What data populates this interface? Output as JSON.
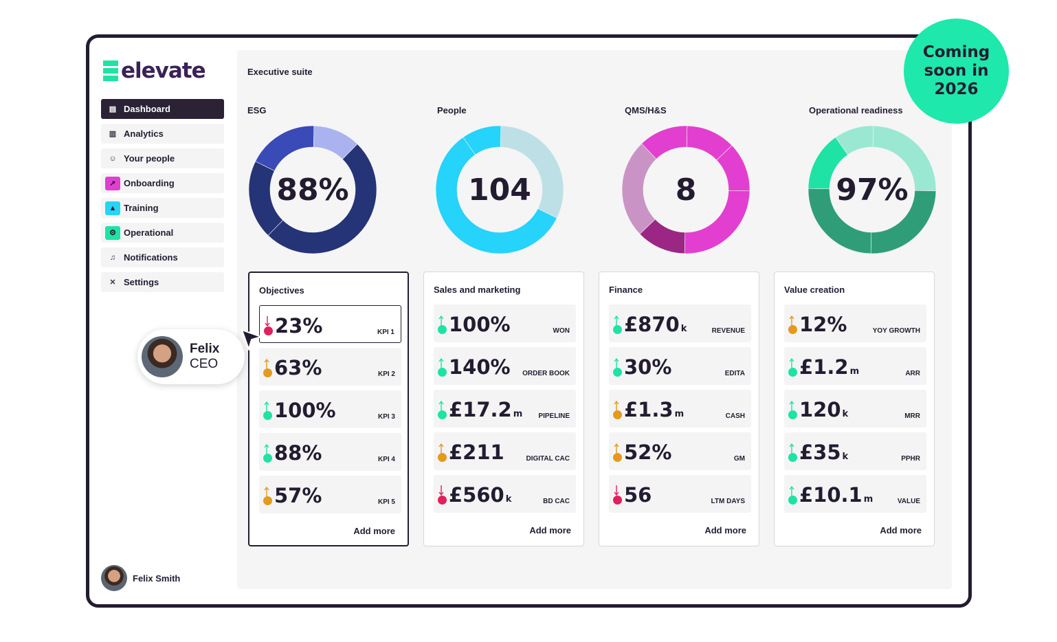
{
  "brand": {
    "name": "elevate"
  },
  "badge": {
    "lines": [
      "Coming",
      "soon in",
      "2026"
    ]
  },
  "sidebar": {
    "items": [
      {
        "label": "Dashboard",
        "icon": "dashboard-icon",
        "color": "#2b2236"
      },
      {
        "label": "Analytics",
        "icon": "chart-icon",
        "color": "#f4f4f4"
      },
      {
        "label": "Your people",
        "icon": "people-icon",
        "color": "#f4f4f4"
      },
      {
        "label": "Onboarding",
        "icon": "rocket-icon",
        "color": "#e23fd0"
      },
      {
        "label": "Training",
        "icon": "graduation-cap-icon",
        "color": "#26d5f5"
      },
      {
        "label": "Operational",
        "icon": "gears-icon",
        "color": "#1ee3a4"
      },
      {
        "label": "Notifications",
        "icon": "bell-icon",
        "color": "#f4f4f4"
      },
      {
        "label": "Settings",
        "icon": "tools-icon",
        "color": "#f4f4f4"
      }
    ],
    "user": "Felix Smith"
  },
  "main": {
    "title": "Executive suite"
  },
  "donuts": [
    {
      "title": "ESG",
      "value": "88%",
      "segments": [
        {
          "fraction": 0.12,
          "color": "#aab3f0"
        },
        {
          "fraction": 0.5,
          "color": "#253377"
        },
        {
          "fraction": 0.2,
          "color": "#253377"
        },
        {
          "fraction": 0.18,
          "color": "#3a4ab6"
        }
      ]
    },
    {
      "title": "People",
      "value": "104",
      "segments": [
        {
          "fraction": 0.32,
          "color": "#bde0e6"
        },
        {
          "fraction": 0.58,
          "color": "#25d3fb"
        },
        {
          "fraction": 0.1,
          "color": "#25d3fb"
        }
      ]
    },
    {
      "title": "QMS/H&S",
      "value": "8",
      "segments": [
        {
          "fraction": 0.125,
          "color": "#e23fd0"
        },
        {
          "fraction": 0.125,
          "color": "#e23fd0"
        },
        {
          "fraction": 0.25,
          "color": "#e23fd0"
        },
        {
          "fraction": 0.125,
          "color": "#9b2684"
        },
        {
          "fraction": 0.25,
          "color": "#c994c5"
        },
        {
          "fraction": 0.125,
          "color": "#e23fd0"
        }
      ]
    },
    {
      "title": "Operational readiness",
      "value": "97%",
      "segments": [
        {
          "fraction": 0.25,
          "color": "#9ae8d2"
        },
        {
          "fraction": 0.25,
          "color": "#2f9e78"
        },
        {
          "fraction": 0.25,
          "color": "#2f9e78"
        },
        {
          "fraction": 0.15,
          "color": "#1ee3a4"
        },
        {
          "fraction": 0.1,
          "color": "#9ae8d2"
        }
      ]
    }
  ],
  "status_colors": {
    "down": "#e0205c",
    "neutral": "#e39a1e",
    "up": "#1ee3a4"
  },
  "cards": [
    {
      "title": "Objectives",
      "add_more": "Add more",
      "kpis": [
        {
          "value": "23%",
          "suffix": "",
          "label": "KPI 1",
          "trend": "down"
        },
        {
          "value": "63%",
          "suffix": "",
          "label": "KPI 2",
          "trend": "neutral"
        },
        {
          "value": "100%",
          "suffix": "",
          "label": "KPI 3",
          "trend": "up"
        },
        {
          "value": "88%",
          "suffix": "",
          "label": "KPI 4",
          "trend": "up"
        },
        {
          "value": "57%",
          "suffix": "",
          "label": "KPI 5",
          "trend": "neutral"
        }
      ]
    },
    {
      "title": "Sales and marketing",
      "add_more": "Add more",
      "kpis": [
        {
          "value": "100%",
          "suffix": "",
          "label": "WON",
          "trend": "up"
        },
        {
          "value": "140%",
          "suffix": "",
          "label": "ORDER BOOK",
          "trend": "up"
        },
        {
          "value": "£17.2",
          "suffix": "m",
          "label": "PIPELINE",
          "trend": "up"
        },
        {
          "value": "£211",
          "suffix": "",
          "label": "DIGITAL CAC",
          "trend": "neutral"
        },
        {
          "value": "£560",
          "suffix": "k",
          "label": "BD CAC",
          "trend": "down"
        }
      ]
    },
    {
      "title": "Finance",
      "add_more": "Add more",
      "kpis": [
        {
          "value": "£870",
          "suffix": "k",
          "label": "REVENUE",
          "trend": "up"
        },
        {
          "value": "30%",
          "suffix": "",
          "label": "EDITA",
          "trend": "up"
        },
        {
          "value": "£1.3",
          "suffix": "m",
          "label": "CASH",
          "trend": "neutral"
        },
        {
          "value": "52%",
          "suffix": "",
          "label": "GM",
          "trend": "neutral"
        },
        {
          "value": "56",
          "suffix": "",
          "label": "LTM DAYS",
          "trend": "down"
        }
      ]
    },
    {
      "title": "Value creation",
      "add_more": "Add more",
      "kpis": [
        {
          "value": "12%",
          "suffix": "",
          "label": "YOY GROWTH",
          "trend": "neutral"
        },
        {
          "value": "£1.2",
          "suffix": "m",
          "label": "ARR",
          "trend": "up"
        },
        {
          "value": "120",
          "suffix": "k",
          "label": "MRR",
          "trend": "up"
        },
        {
          "value": "£35",
          "suffix": "k",
          "label": "PPHR",
          "trend": "up"
        },
        {
          "value": "£10.1",
          "suffix": "m",
          "label": "VALUE",
          "trend": "up"
        }
      ]
    }
  ],
  "callout": {
    "name": "Felix",
    "role": "CEO"
  }
}
